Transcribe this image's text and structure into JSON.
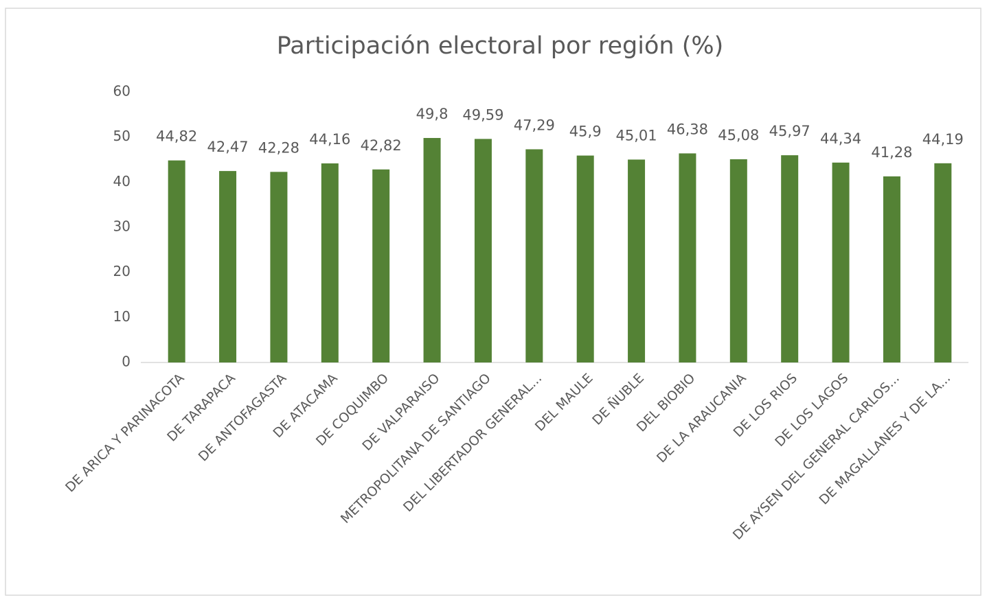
{
  "chart_data": {
    "type": "bar",
    "title": "Participación electoral por región (%)",
    "categories": [
      "DE ARICA Y PARINACOTA",
      "DE TARAPACA",
      "DE ANTOFAGASTA",
      "DE ATACAMA",
      "DE COQUIMBO",
      "DE VALPARAISO",
      "METROPOLITANA DE SANTIAGO",
      "DEL LIBERTADOR GENERAL...",
      "DEL MAULE",
      "DE ÑUBLE",
      "DEL BIOBIO",
      "DE LA ARAUCANIA",
      "DE LOS RIOS",
      "DE LOS LAGOS",
      "DE AYSEN DEL GENERAL CARLOS...",
      "DE MAGALLANES Y DE LA..."
    ],
    "values": [
      44.82,
      42.47,
      42.28,
      44.16,
      42.82,
      49.8,
      49.59,
      47.29,
      45.9,
      45.01,
      46.38,
      45.08,
      45.97,
      44.34,
      41.28,
      44.19
    ],
    "value_labels": [
      "44,82",
      "42,47",
      "42,28",
      "44,16",
      "42,82",
      "49,8",
      "49,59",
      "47,29",
      "45,9",
      "45,01",
      "46,38",
      "45,08",
      "45,97",
      "44,34",
      "41,28",
      "44,19"
    ],
    "color": "#548235",
    "ylim": [
      0,
      60
    ],
    "yticks": [
      0,
      10,
      20,
      30,
      40,
      50,
      60
    ],
    "grid": false
  }
}
